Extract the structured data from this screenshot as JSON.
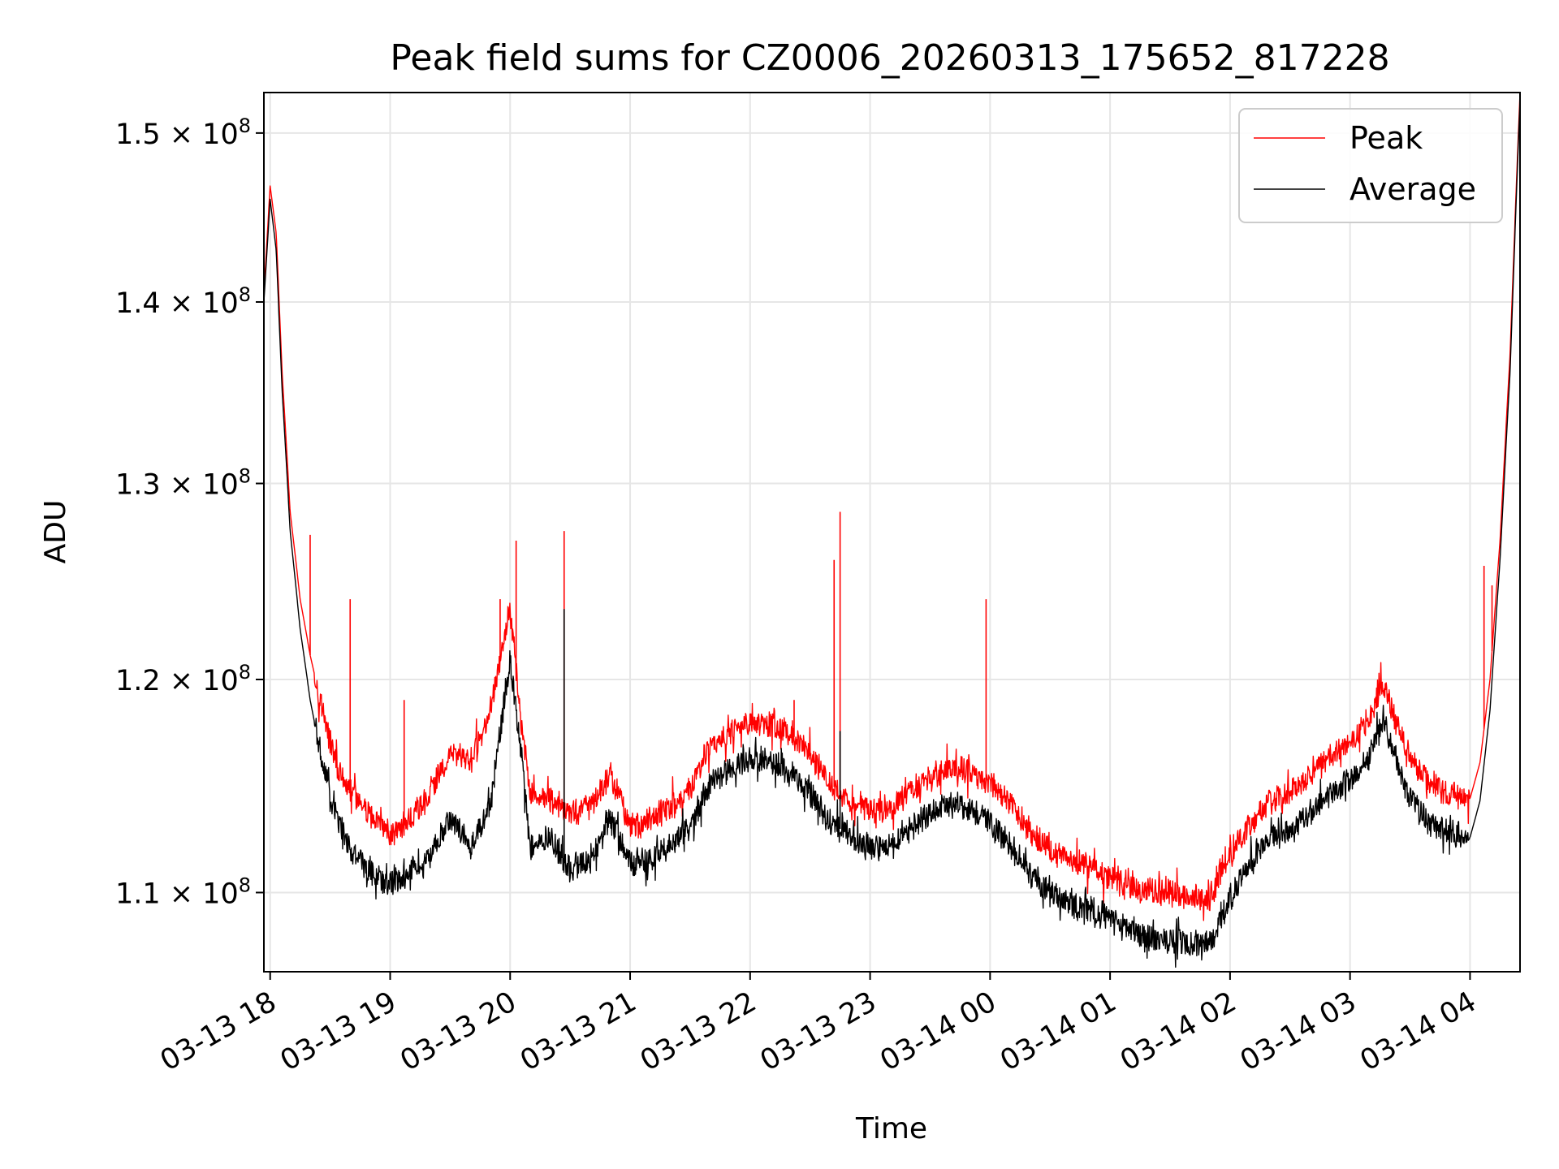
{
  "chart_data": {
    "type": "line",
    "title": "Peak field sums for CZ0006_20260313_175652_817228",
    "xlabel": "Time",
    "ylabel": "ADU",
    "x_range": [
      "2026-03-13 17:56:52",
      "2026-03-14 04:25:00"
    ],
    "y_scale": "log",
    "ylim": [
      106500000,
      152500000
    ],
    "grid": true,
    "legend_position": "top-right",
    "x_ticks": [
      "03-13 18",
      "03-13 19",
      "03-13 20",
      "03-13 21",
      "03-13 22",
      "03-13 23",
      "03-14 00",
      "03-14 01",
      "03-14 02",
      "03-14 03",
      "03-14 04"
    ],
    "y_ticks": [
      {
        "value": 110000000,
        "mantissa": "1.1",
        "exponent": "8"
      },
      {
        "value": 120000000,
        "mantissa": "1.2",
        "exponent": "8"
      },
      {
        "value": 130000000,
        "mantissa": "1.3",
        "exponent": "8"
      },
      {
        "value": 140000000,
        "mantissa": "1.4",
        "exponent": "8"
      },
      {
        "value": 150000000,
        "mantissa": "1.5",
        "exponent": "8"
      }
    ],
    "series": [
      {
        "name": "Peak",
        "color": "#ff0000",
        "points": [
          [
            "2026-03-13 17:56:52",
            140.5
          ],
          [
            "2026-03-13 18:00:00",
            146.8
          ],
          [
            "2026-03-13 18:03:00",
            144.0
          ],
          [
            "2026-03-13 18:06:00",
            136.0
          ],
          [
            "2026-03-13 18:10:00",
            128.5
          ],
          [
            "2026-03-13 18:15:00",
            124.0
          ],
          [
            "2026-03-13 18:20:00",
            121.2
          ],
          [
            "2026-03-13 18:25:00",
            119.0
          ],
          [
            "2026-03-13 18:30:00",
            117.0
          ],
          [
            "2026-03-13 18:35:00",
            115.5
          ],
          [
            "2026-03-13 18:40:00",
            114.6
          ],
          [
            "2026-03-13 18:50:00",
            113.5
          ],
          [
            "2026-03-13 19:00:00",
            112.6
          ],
          [
            "2026-03-13 19:10:00",
            113.3
          ],
          [
            "2026-03-13 19:20:00",
            114.5
          ],
          [
            "2026-03-13 19:30:00",
            116.5
          ],
          [
            "2026-03-13 19:40:00",
            116.0
          ],
          [
            "2026-03-13 19:50:00",
            118.5
          ],
          [
            "2026-03-13 20:00:00",
            123.5
          ],
          [
            "2026-03-13 20:06:00",
            117.5
          ],
          [
            "2026-03-13 20:10:00",
            114.5
          ],
          [
            "2026-03-13 20:20:00",
            114.2
          ],
          [
            "2026-03-13 20:30:00",
            113.6
          ],
          [
            "2026-03-13 20:40:00",
            114.0
          ],
          [
            "2026-03-13 20:50:00",
            115.5
          ],
          [
            "2026-03-13 21:00:00",
            113.0
          ],
          [
            "2026-03-13 21:10:00",
            113.3
          ],
          [
            "2026-03-13 21:20:00",
            114.0
          ],
          [
            "2026-03-13 21:30:00",
            114.8
          ],
          [
            "2026-03-13 21:40:00",
            116.8
          ],
          [
            "2026-03-13 21:50:00",
            117.4
          ],
          [
            "2026-03-13 22:00:00",
            117.9
          ],
          [
            "2026-03-13 22:10:00",
            117.8
          ],
          [
            "2026-03-13 22:20:00",
            117.4
          ],
          [
            "2026-03-13 22:30:00",
            116.5
          ],
          [
            "2026-03-13 22:40:00",
            115.0
          ],
          [
            "2026-03-13 22:50:00",
            114.2
          ],
          [
            "2026-03-13 23:00:00",
            113.8
          ],
          [
            "2026-03-13 23:10:00",
            113.9
          ],
          [
            "2026-03-13 23:20:00",
            114.6
          ],
          [
            "2026-03-13 23:30:00",
            115.3
          ],
          [
            "2026-03-13 23:40:00",
            115.7
          ],
          [
            "2026-03-13 23:50:00",
            115.6
          ],
          [
            "2026-03-14 00:00:00",
            115.1
          ],
          [
            "2026-03-14 00:10:00",
            114.0
          ],
          [
            "2026-03-14 00:20:00",
            112.8
          ],
          [
            "2026-03-14 00:30:00",
            112.0
          ],
          [
            "2026-03-14 00:40:00",
            111.5
          ],
          [
            "2026-03-14 00:50:00",
            111.2
          ],
          [
            "2026-03-14 01:00:00",
            110.6
          ],
          [
            "2026-03-14 01:10:00",
            110.3
          ],
          [
            "2026-03-14 01:20:00",
            110.1
          ],
          [
            "2026-03-14 01:30:00",
            110.0
          ],
          [
            "2026-03-14 01:40:00",
            109.8
          ],
          [
            "2026-03-14 01:50:00",
            109.8
          ],
          [
            "2026-03-14 02:00:00",
            111.8
          ],
          [
            "2026-03-14 02:10:00",
            113.0
          ],
          [
            "2026-03-14 02:20:00",
            114.2
          ],
          [
            "2026-03-14 02:30:00",
            114.5
          ],
          [
            "2026-03-14 02:40:00",
            115.3
          ],
          [
            "2026-03-14 02:50:00",
            116.3
          ],
          [
            "2026-03-14 03:00:00",
            116.9
          ],
          [
            "2026-03-14 03:10:00",
            118.0
          ],
          [
            "2026-03-14 03:16:00",
            119.8
          ],
          [
            "2026-03-14 03:22:00",
            118.2
          ],
          [
            "2026-03-14 03:30:00",
            116.2
          ],
          [
            "2026-03-14 03:40:00",
            115.0
          ],
          [
            "2026-03-14 03:50:00",
            114.5
          ],
          [
            "2026-03-14 04:00:00",
            114.3
          ],
          [
            "2026-03-14 04:05:00",
            116.0
          ],
          [
            "2026-03-14 04:10:00",
            120.0
          ],
          [
            "2026-03-14 04:15:00",
            127.0
          ],
          [
            "2026-03-14 04:20:00",
            137.0
          ],
          [
            "2026-03-14 04:25:00",
            152.5
          ]
        ],
        "spikes": [
          [
            "2026-03-13 18:20:00",
            127.3
          ],
          [
            "2026-03-13 18:40:00",
            124.0
          ],
          [
            "2026-03-13 19:07:00",
            119.0
          ],
          [
            "2026-03-13 19:55:00",
            124.0
          ],
          [
            "2026-03-13 20:03:00",
            127.0
          ],
          [
            "2026-03-13 20:27:00",
            127.5
          ],
          [
            "2026-03-13 22:22:00",
            119.0
          ],
          [
            "2026-03-13 22:42:00",
            126.0
          ],
          [
            "2026-03-13 22:45:00",
            128.5
          ],
          [
            "2026-03-13 23:58:00",
            124.0
          ],
          [
            "2026-03-14 04:07:00",
            125.7
          ],
          [
            "2026-03-14 04:11:00",
            124.7
          ]
        ]
      },
      {
        "name": "Average",
        "color": "#000000",
        "points": [
          [
            "2026-03-13 17:56:52",
            140.0
          ],
          [
            "2026-03-13 18:00:00",
            146.0
          ],
          [
            "2026-03-13 18:03:00",
            143.0
          ],
          [
            "2026-03-13 18:06:00",
            135.0
          ],
          [
            "2026-03-13 18:10:00",
            127.5
          ],
          [
            "2026-03-13 18:15:00",
            122.5
          ],
          [
            "2026-03-13 18:20:00",
            119.0
          ],
          [
            "2026-03-13 18:25:00",
            116.5
          ],
          [
            "2026-03-13 18:30:00",
            114.5
          ],
          [
            "2026-03-13 18:35:00",
            113.0
          ],
          [
            "2026-03-13 18:40:00",
            112.0
          ],
          [
            "2026-03-13 18:50:00",
            111.0
          ],
          [
            "2026-03-13 19:00:00",
            110.3
          ],
          [
            "2026-03-13 19:10:00",
            111.0
          ],
          [
            "2026-03-13 19:20:00",
            111.5
          ],
          [
            "2026-03-13 19:30:00",
            113.5
          ],
          [
            "2026-03-13 19:40:00",
            112.0
          ],
          [
            "2026-03-13 19:50:00",
            114.0
          ],
          [
            "2026-03-13 20:00:00",
            121.0
          ],
          [
            "2026-03-13 20:06:00",
            116.0
          ],
          [
            "2026-03-13 20:10:00",
            112.0
          ],
          [
            "2026-03-13 20:20:00",
            112.5
          ],
          [
            "2026-03-13 20:30:00",
            111.0
          ],
          [
            "2026-03-13 20:40:00",
            111.5
          ],
          [
            "2026-03-13 20:50:00",
            113.5
          ],
          [
            "2026-03-13 21:00:00",
            111.3
          ],
          [
            "2026-03-13 21:10:00",
            111.5
          ],
          [
            "2026-03-13 21:20:00",
            112.2
          ],
          [
            "2026-03-13 21:30:00",
            113.0
          ],
          [
            "2026-03-13 21:40:00",
            115.0
          ],
          [
            "2026-03-13 21:50:00",
            115.7
          ],
          [
            "2026-03-13 22:00:00",
            116.2
          ],
          [
            "2026-03-13 22:10:00",
            116.1
          ],
          [
            "2026-03-13 22:20:00",
            115.6
          ],
          [
            "2026-03-13 22:30:00",
            114.6
          ],
          [
            "2026-03-13 22:40:00",
            113.2
          ],
          [
            "2026-03-13 22:50:00",
            112.6
          ],
          [
            "2026-03-13 23:00:00",
            112.0
          ],
          [
            "2026-03-13 23:10:00",
            112.1
          ],
          [
            "2026-03-13 23:20:00",
            112.8
          ],
          [
            "2026-03-13 23:30:00",
            113.6
          ],
          [
            "2026-03-13 23:40:00",
            114.0
          ],
          [
            "2026-03-13 23:50:00",
            113.9
          ],
          [
            "2026-03-14 00:00:00",
            113.2
          ],
          [
            "2026-03-14 00:10:00",
            112.0
          ],
          [
            "2026-03-14 00:20:00",
            110.9
          ],
          [
            "2026-03-14 00:30:00",
            110.0
          ],
          [
            "2026-03-14 00:40:00",
            109.5
          ],
          [
            "2026-03-14 00:50:00",
            109.3
          ],
          [
            "2026-03-14 01:00:00",
            108.8
          ],
          [
            "2026-03-14 01:10:00",
            108.3
          ],
          [
            "2026-03-14 01:20:00",
            108.0
          ],
          [
            "2026-03-14 01:30:00",
            107.9
          ],
          [
            "2026-03-14 01:40:00",
            107.8
          ],
          [
            "2026-03-14 01:50:00",
            107.8
          ],
          [
            "2026-03-14 02:00:00",
            109.8
          ],
          [
            "2026-03-14 02:10:00",
            111.3
          ],
          [
            "2026-03-14 02:20:00",
            112.5
          ],
          [
            "2026-03-14 02:30:00",
            112.8
          ],
          [
            "2026-03-14 02:40:00",
            113.6
          ],
          [
            "2026-03-14 02:50:00",
            114.5
          ],
          [
            "2026-03-14 03:00:00",
            115.1
          ],
          [
            "2026-03-14 03:10:00",
            116.3
          ],
          [
            "2026-03-14 03:16:00",
            118.0
          ],
          [
            "2026-03-14 03:22:00",
            116.5
          ],
          [
            "2026-03-14 03:30:00",
            114.4
          ],
          [
            "2026-03-14 03:40:00",
            113.2
          ],
          [
            "2026-03-14 03:50:00",
            112.7
          ],
          [
            "2026-03-14 04:00:00",
            112.5
          ],
          [
            "2026-03-14 04:05:00",
            114.2
          ],
          [
            "2026-03-14 04:10:00",
            118.5
          ],
          [
            "2026-03-14 04:15:00",
            126.0
          ],
          [
            "2026-03-14 04:20:00",
            136.0
          ],
          [
            "2026-03-14 04:25:00",
            152.0
          ]
        ],
        "spikes": [
          [
            "2026-03-13 20:27:00",
            123.5
          ],
          [
            "2026-03-13 22:45:00",
            117.5
          ]
        ]
      }
    ]
  }
}
